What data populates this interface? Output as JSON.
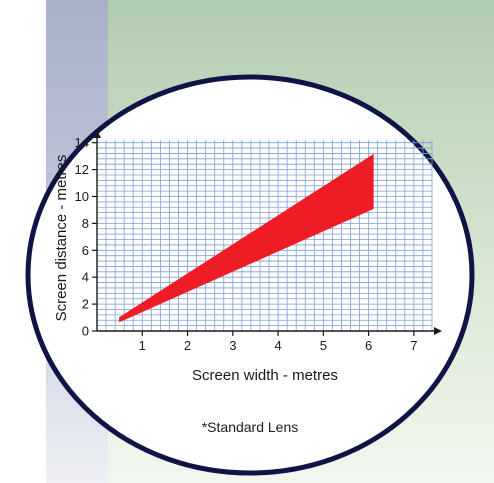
{
  "chart_data": {
    "type": "area",
    "xlabel": "Screen width - metres",
    "ylabel": "Screen distance - metres",
    "note": "*Standard Lens",
    "xlim": [
      0,
      7.4
    ],
    "ylim": [
      0,
      14.2
    ],
    "x_ticks": [
      1,
      2,
      3,
      4,
      5,
      6,
      7
    ],
    "y_ticks": [
      0,
      2,
      4,
      6,
      8,
      10,
      12,
      14
    ],
    "band": {
      "x": [
        0.5,
        6.1
      ],
      "upper": [
        1.0,
        13.1
      ],
      "lower": [
        0.7,
        9.1
      ],
      "color": "#ee1c25"
    },
    "grid": true,
    "colors": {
      "grid": "#7f9ed6",
      "circle_border": "#0f1345",
      "band": "#ee1c25"
    }
  }
}
